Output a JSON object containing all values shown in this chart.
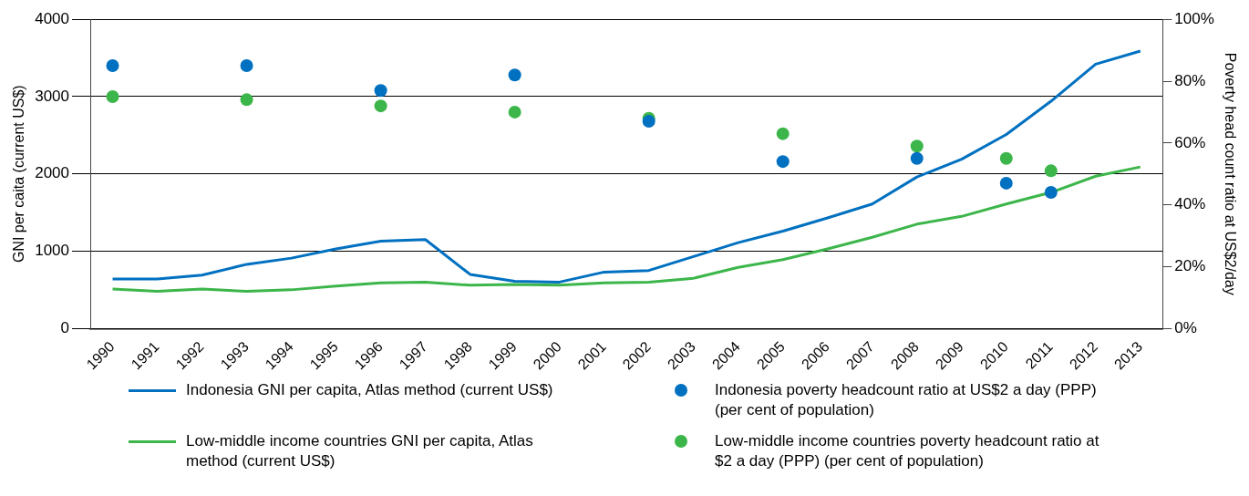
{
  "chart_data": {
    "type": "line",
    "ylabel": "GNI per caita (current US$)",
    "y2label": "Poverty head count ratio at US$2/day",
    "categories": [
      "1990",
      "1991",
      "1992",
      "1993",
      "1994",
      "1995",
      "1996",
      "1997",
      "1998",
      "1999",
      "2000",
      "2001",
      "2002",
      "2003",
      "2004",
      "2005",
      "2006",
      "2007",
      "2008",
      "2009",
      "2010",
      "2011",
      "2012",
      "2013"
    ],
    "ylim": [
      0,
      4000
    ],
    "yticks": [
      0,
      1000,
      2000,
      3000,
      4000
    ],
    "y2lim": [
      0,
      100
    ],
    "y2ticks": [
      {
        "value": 0,
        "label": "0%"
      },
      {
        "value": 20,
        "label": "20%"
      },
      {
        "value": 40,
        "label": "40%"
      },
      {
        "value": 60,
        "label": "60%"
      },
      {
        "value": 80,
        "label": "80%"
      },
      {
        "value": 100,
        "label": "100%"
      }
    ],
    "grid": "y",
    "legend": "bottom",
    "marker": "none",
    "line_style": "solid",
    "series": [
      {
        "name": "Indonesia GNI per capita, Atlas method (current US$)",
        "color": "#0070c0",
        "values": [
          640,
          640,
          690,
          830,
          910,
          1030,
          1130,
          1150,
          700,
          610,
          600,
          730,
          750,
          930,
          1110,
          1260,
          1430,
          1610,
          1960,
          2190,
          2510,
          2940,
          3420,
          3590
        ]
      },
      {
        "name": "Indonesia poverty headcount ratio at US$2 a day (PPP) (per cent of population)",
        "color": "#0070c0",
        "type": "scatter",
        "axis": "y2",
        "marker": "circle",
        "values": [
          85,
          null,
          null,
          85,
          null,
          null,
          77,
          null,
          null,
          82,
          null,
          null,
          67,
          null,
          null,
          54,
          null,
          null,
          55,
          null,
          47,
          44,
          null,
          null
        ]
      },
      {
        "name": "Low-middle income countries GNI per capita, Atlas method (current US$)",
        "color": "#3cb64a",
        "values": [
          510,
          480,
          510,
          480,
          500,
          550,
          590,
          600,
          560,
          570,
          560,
          590,
          600,
          650,
          790,
          890,
          1030,
          1180,
          1350,
          1450,
          1610,
          1760,
          1970,
          2090
        ]
      },
      {
        "name": "Low-middle income countries poverty headcount ratio at $2 a day (PPP) (per cent of population)",
        "color": "#3cb64a",
        "type": "scatter",
        "axis": "y2",
        "marker": "circle",
        "values": [
          75,
          null,
          null,
          74,
          null,
          null,
          72,
          null,
          null,
          70,
          null,
          null,
          68,
          null,
          null,
          63,
          null,
          null,
          59,
          null,
          55,
          51,
          null,
          null
        ]
      }
    ]
  }
}
